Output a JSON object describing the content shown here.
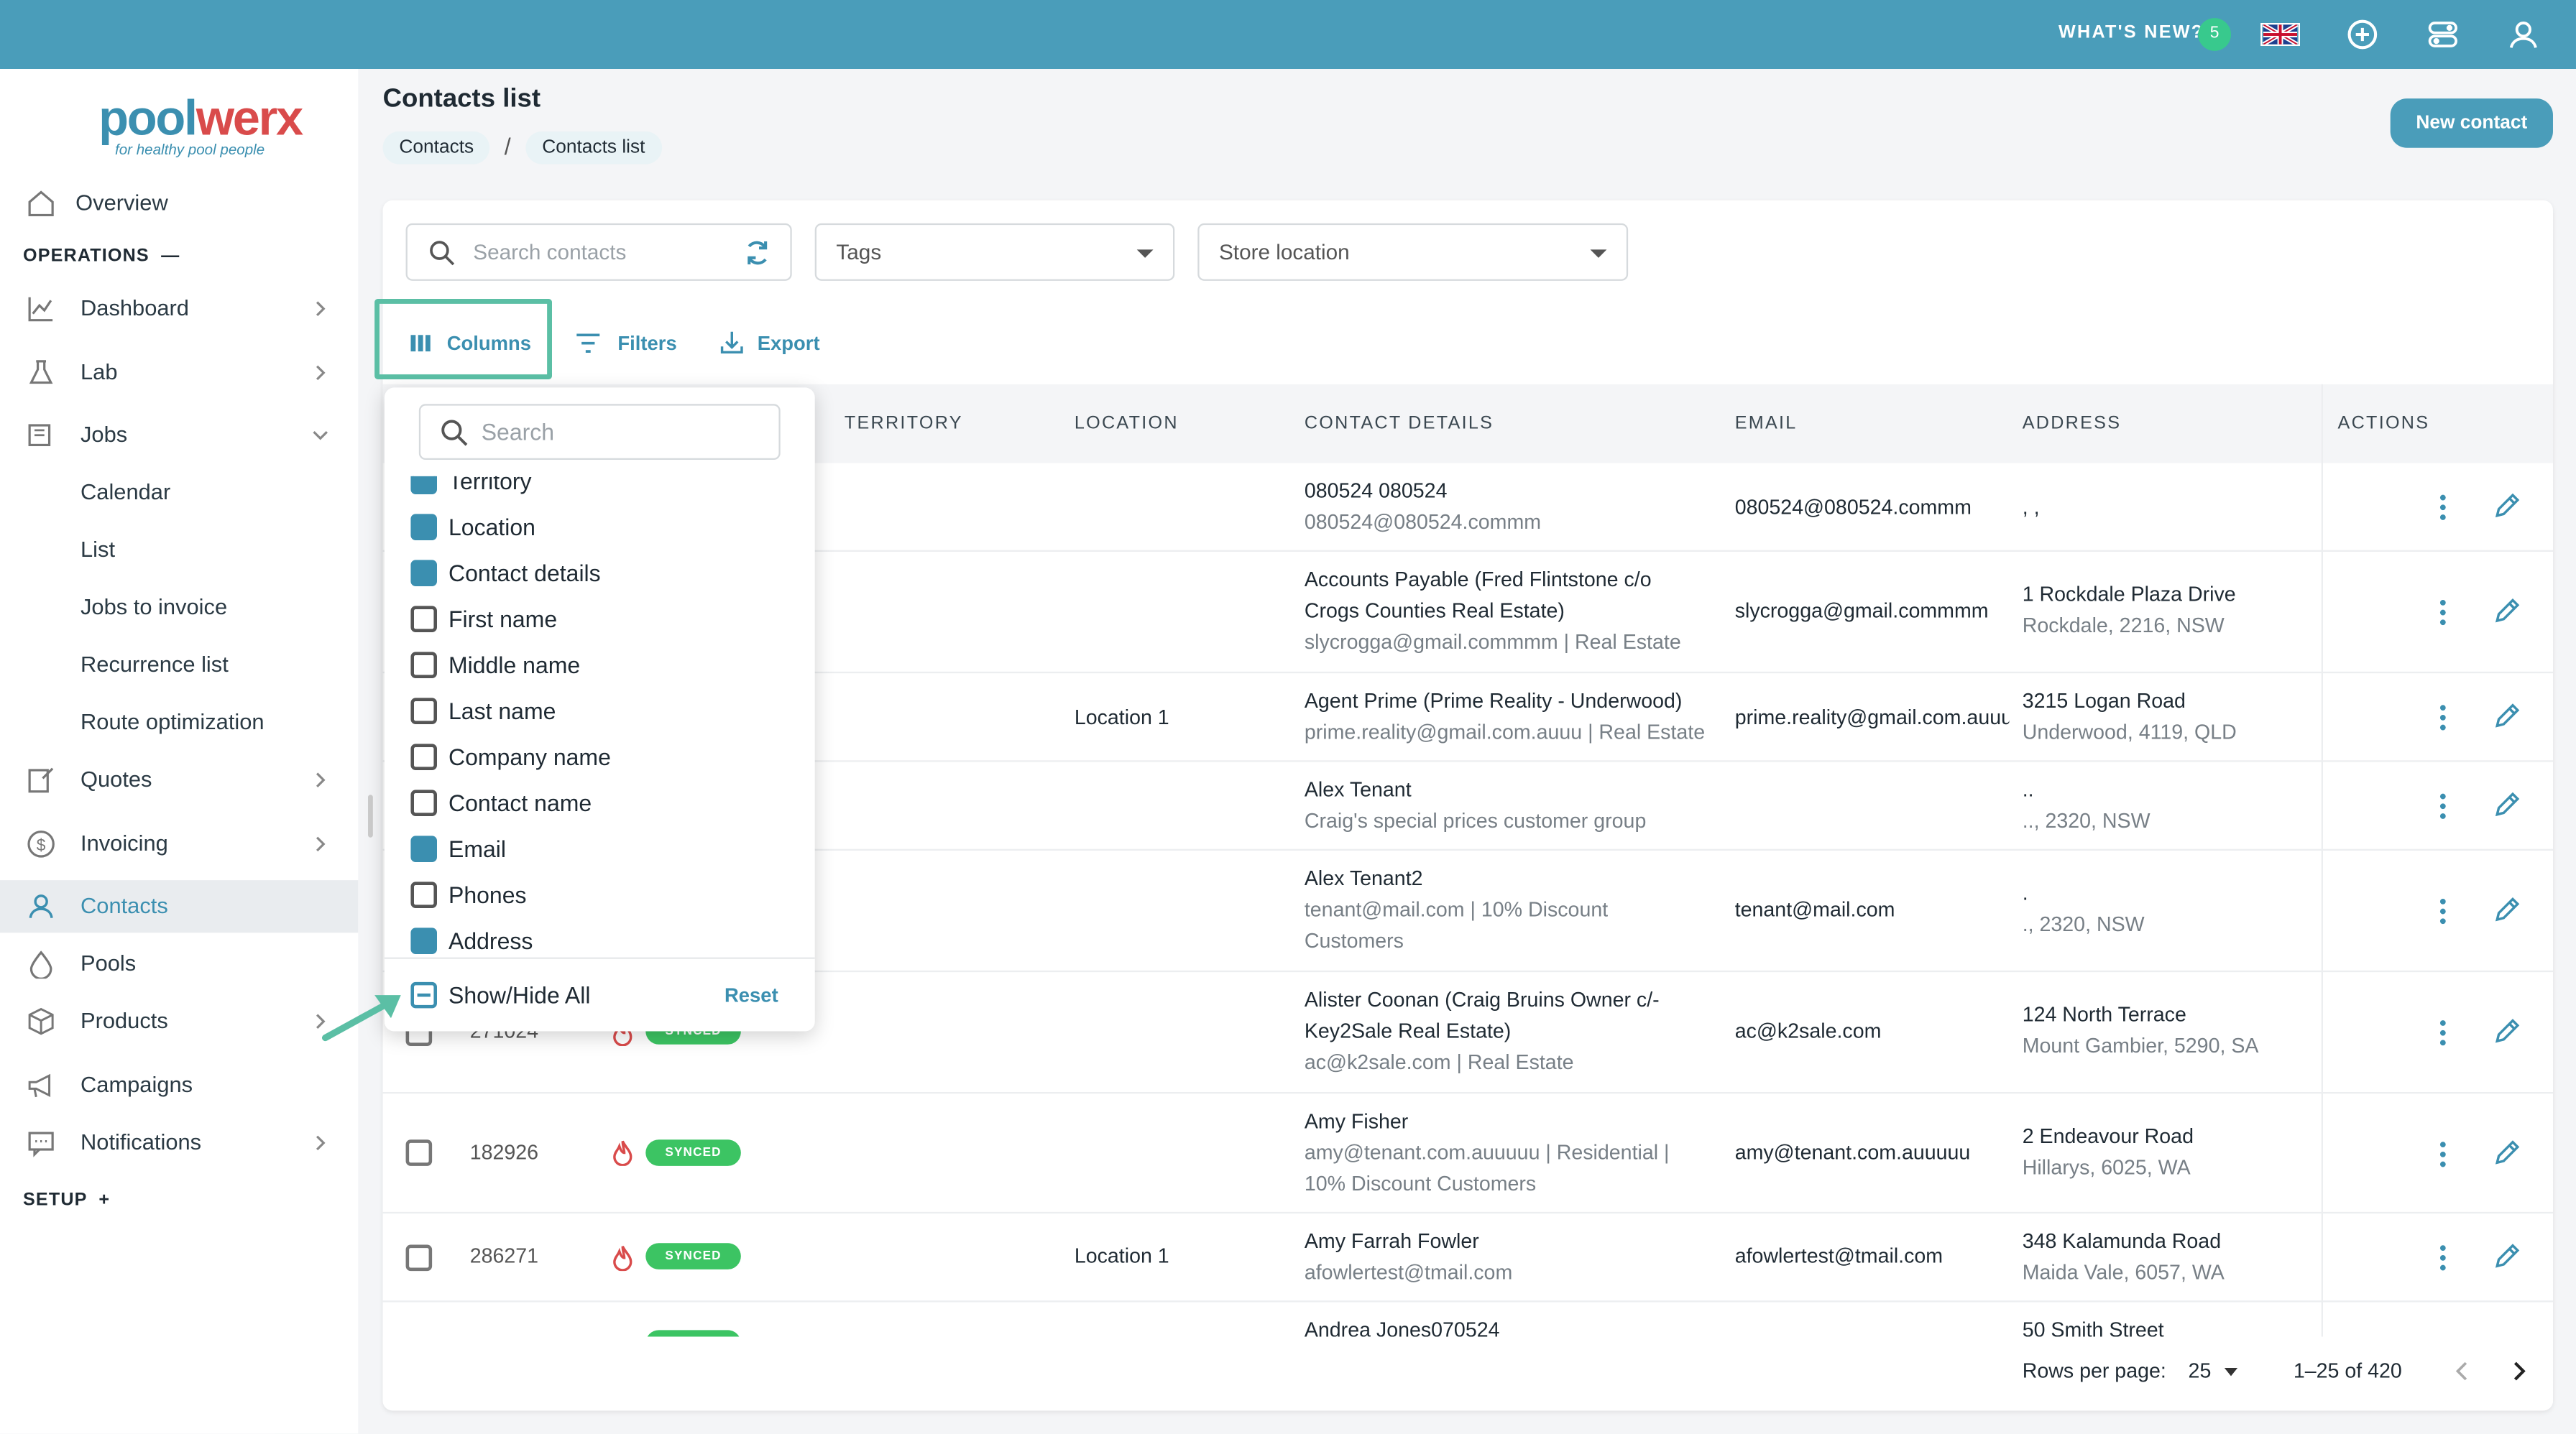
{
  "topbar": {
    "whats_new": "WHAT'S NEW?",
    "whats_new_count": "5",
    "accent": "#4a9dba"
  },
  "sidebar": {
    "logo_part1": "pool",
    "logo_part2": "werx",
    "tagline": "for healthy pool people",
    "overview": "Overview",
    "operations_header": "OPERATIONS",
    "setup_header": "SETUP",
    "items": [
      {
        "label": "Dashboard",
        "icon": "chart-icon"
      },
      {
        "label": "Lab",
        "icon": "flask-icon"
      },
      {
        "label": "Jobs",
        "icon": "jobs-icon"
      },
      {
        "label": "Calendar"
      },
      {
        "label": "List"
      },
      {
        "label": "Jobs to invoice"
      },
      {
        "label": "Recurrence list"
      },
      {
        "label": "Route optimization"
      },
      {
        "label": "Quotes",
        "icon": "quote-icon"
      },
      {
        "label": "Invoicing",
        "icon": "dollar-icon"
      },
      {
        "label": "Contacts",
        "icon": "user-icon"
      },
      {
        "label": "Pools",
        "icon": "drop-icon"
      },
      {
        "label": "Products",
        "icon": "box-icon"
      },
      {
        "label": "Campaigns",
        "icon": "megaphone-icon"
      },
      {
        "label": "Notifications",
        "icon": "chat-icon"
      }
    ]
  },
  "header": {
    "title": "Contacts list",
    "breadcrumb": [
      "Contacts",
      "Contacts list"
    ],
    "new_contact": "New contact"
  },
  "filters": {
    "search_placeholder": "Search contacts",
    "tags": "Tags",
    "store_location": "Store location",
    "columns": "Columns",
    "filters": "Filters",
    "export": "Export"
  },
  "table": {
    "headers": [
      "TERRITORY",
      "LOCATION",
      "CONTACT DETAILS",
      "EMAIL",
      "ADDRESS",
      "ACTIONS"
    ],
    "rows": [
      {
        "id": "",
        "location": "",
        "name": "080524 080524",
        "details": "080524@080524.commm",
        "email": "080524@080524.commm",
        "addr1": ", ,",
        "addr2": ""
      },
      {
        "id": "",
        "location": "",
        "name": "Accounts Payable (Fred Flintstone c/o",
        "name2": "Crogs Counties Real Estate)",
        "details": "slycrogga@gmail.commmm | Real Estate",
        "email": "slycrogga@gmail.commmm",
        "addr1": "1 Rockdale Plaza Drive",
        "addr2": "Rockdale, 2216, NSW"
      },
      {
        "id": "",
        "location": "Location 1",
        "name": "Agent Prime (Prime Reality - Underwood)",
        "details": "prime.reality@gmail.com.auuu | Real Estate",
        "email": "prime.reality@gmail.com.auuu",
        "addr1": "3215 Logan Road",
        "addr2": "Underwood, 4119, QLD"
      },
      {
        "id": "",
        "location": "",
        "name": "Alex Tenant",
        "details": "Craig's special prices customer group",
        "email": "",
        "addr1": "..",
        "addr2": ".., 2320, NSW"
      },
      {
        "id": "",
        "location": "",
        "name": "Alex Tenant2",
        "details": "tenant@mail.com | 10% Discount",
        "details2": "Customers",
        "email": "tenant@mail.com",
        "addr1": ".",
        "addr2": "., 2320, NSW"
      },
      {
        "id": "271024",
        "location": "",
        "name": "Alister Coonan (Craig Bruins Owner c/-",
        "name2": "Key2Sale Real Estate)",
        "details": "ac@k2sale.com | Real Estate",
        "email": "ac@k2sale.com",
        "addr1": "124 North Terrace",
        "addr2": "Mount Gambier, 5290, SA"
      },
      {
        "id": "182926",
        "location": "",
        "name": "Amy Fisher",
        "details": "amy@tenant.com.auuuuu | Residential |",
        "details2": "10% Discount Customers",
        "email": "amy@tenant.com.auuuuu",
        "addr1": "2 Endeavour Road",
        "addr2": "Hillarys, 6025, WA"
      },
      {
        "id": "286271",
        "location": "Location 1",
        "name": "Amy Farrah Fowler",
        "details": "afowlertest@tmail.com",
        "email": "afowlertest@tmail.com",
        "addr1": "348 Kalamunda Road",
        "addr2": "Maida Vale, 6057, WA"
      },
      {
        "id": "",
        "location": "",
        "name": "Andrea Jones070524",
        "details": "",
        "email": "",
        "addr1": "50 Smith Street",
        "addr2": ""
      }
    ],
    "synced": "SYNCED",
    "rows_per_page_label": "Rows per page:",
    "rows_per_page": "25",
    "range": "1–25 of 420"
  },
  "columns_popup": {
    "search_placeholder": "Search",
    "options": [
      {
        "label": "Territory",
        "checked": true
      },
      {
        "label": "Location",
        "checked": true
      },
      {
        "label": "Contact details",
        "checked": true
      },
      {
        "label": "First name",
        "checked": false
      },
      {
        "label": "Middle name",
        "checked": false
      },
      {
        "label": "Last name",
        "checked": false
      },
      {
        "label": "Company name",
        "checked": false
      },
      {
        "label": "Contact name",
        "checked": false
      },
      {
        "label": "Email",
        "checked": true
      },
      {
        "label": "Phones",
        "checked": false
      },
      {
        "label": "Address",
        "checked": true
      }
    ],
    "show_hide_all": "Show/Hide All",
    "reset": "Reset"
  }
}
